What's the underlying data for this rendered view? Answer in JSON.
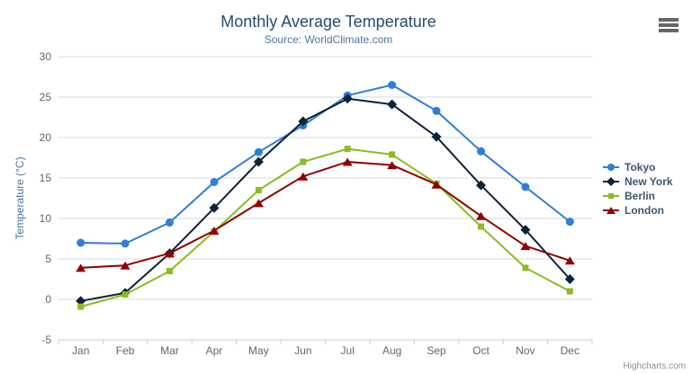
{
  "chart_data": {
    "type": "line",
    "title": "Monthly Average Temperature",
    "subtitle": "Source: WorldClimate.com",
    "categories": [
      "Jan",
      "Feb",
      "Mar",
      "Apr",
      "May",
      "Jun",
      "Jul",
      "Aug",
      "Sep",
      "Oct",
      "Nov",
      "Dec"
    ],
    "xlabel": "",
    "ylabel": "Temperature (°C)",
    "ylim": [
      -5,
      30
    ],
    "ytick_interval": 5,
    "grid": true,
    "legend_position": "right",
    "series": [
      {
        "name": "Tokyo",
        "color": "#2f7ed8",
        "marker": "circle",
        "values": [
          7.0,
          6.9,
          9.5,
          14.5,
          18.2,
          21.5,
          25.2,
          26.5,
          23.3,
          18.3,
          13.9,
          9.6
        ]
      },
      {
        "name": "New York",
        "color": "#0d233a",
        "marker": "diamond",
        "values": [
          -0.2,
          0.8,
          5.7,
          11.3,
          17.0,
          22.0,
          24.8,
          24.1,
          20.1,
          14.1,
          8.6,
          2.5
        ]
      },
      {
        "name": "Berlin",
        "color": "#8bbc21",
        "marker": "square",
        "values": [
          -0.9,
          0.6,
          3.5,
          8.4,
          13.5,
          17.0,
          18.6,
          17.9,
          14.3,
          9.0,
          3.9,
          1.0
        ]
      },
      {
        "name": "London",
        "color": "#910000",
        "marker": "triangle",
        "values": [
          3.9,
          4.2,
          5.7,
          8.5,
          11.9,
          15.2,
          17.0,
          16.6,
          14.2,
          10.3,
          6.6,
          4.8
        ]
      }
    ]
  },
  "credits": "Highcharts.com",
  "icons": {
    "export_menu": "hamburger-icon"
  },
  "colors": {
    "background": "#ffffff",
    "title": "#274b6d",
    "subtitle": "#4d759e",
    "axis_label": "#666666",
    "yaxis_title": "#4d759e",
    "legend_text": "#3e576f",
    "grid_line": "#d8d8d8",
    "axis_line": "#c0d0e0",
    "credits": "#909090",
    "burger": "#666666"
  }
}
